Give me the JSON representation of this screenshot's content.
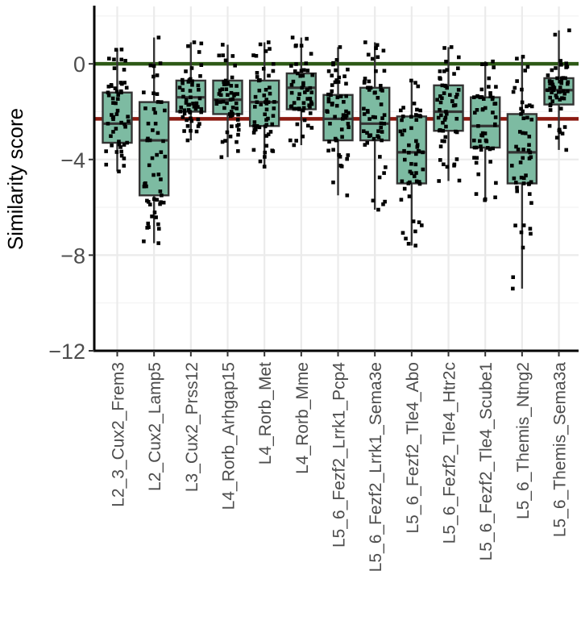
{
  "chart_data": {
    "type": "boxplot",
    "title": "",
    "xlabel": "",
    "ylabel": "Similarity score",
    "ylim": [
      -12,
      2.4
    ],
    "y_ticks": [
      0,
      -4,
      -8,
      -12
    ],
    "y_tick_labels": [
      "0",
      "−4",
      "−8",
      "−12"
    ],
    "grid": true,
    "legend": "none",
    "reference_lines": [
      {
        "name": "zero",
        "value": 0,
        "color": "#2d5a16"
      },
      {
        "name": "threshold",
        "value": -2.3,
        "color": "#8b1a10"
      }
    ],
    "categories": [
      "L2_3_Cux2_Frem3",
      "L2_Cux2_Lamp5",
      "L3_Cux2_Prss12",
      "L4_Rorb_Arhgap15",
      "L4_Rorb_Met",
      "L4_Rorb_Mme",
      "L5_6_Fezf2_Lrrk1_Pcp4",
      "L5_6_Fezf2_Lrrk1_Sema3e",
      "L5_6_Fezf2_Tle4_Abo",
      "L5_6_Fezf2_Tle4_Htr2c",
      "L5_6_Fezf2_Tle4_Scube1",
      "L5_6_Themis_Ntng2",
      "L5_6_Themis_Sema3a"
    ],
    "boxes": [
      {
        "min": -4.5,
        "q1": -3.3,
        "median": -2.5,
        "q3": -1.2,
        "max": 0.6
      },
      {
        "min": -7.5,
        "q1": -5.5,
        "median": -3.2,
        "q3": -1.6,
        "max": 1.1
      },
      {
        "min": -3.2,
        "q1": -2.0,
        "median": -1.4,
        "q3": -0.7,
        "max": 0.9
      },
      {
        "min": -3.9,
        "q1": -2.1,
        "median": -1.5,
        "q3": -0.7,
        "max": 0.8
      },
      {
        "min": -4.3,
        "q1": -2.6,
        "median": -1.6,
        "q3": -0.7,
        "max": 0.9
      },
      {
        "min": -3.4,
        "q1": -1.9,
        "median": -1.0,
        "q3": -0.4,
        "max": 1.1
      },
      {
        "min": -5.5,
        "q1": -3.2,
        "median": -2.3,
        "q3": -1.3,
        "max": 0.7
      },
      {
        "min": -6.1,
        "q1": -3.2,
        "median": -2.5,
        "q3": -1.0,
        "max": 0.9
      },
      {
        "min": -7.6,
        "q1": -5.0,
        "median": -3.7,
        "q3": -2.2,
        "max": -0.7
      },
      {
        "min": -4.9,
        "q1": -2.8,
        "median": -2.0,
        "q3": -0.9,
        "max": 0.7
      },
      {
        "min": -5.7,
        "q1": -3.5,
        "median": -2.6,
        "q3": -1.4,
        "max": 0.1
      },
      {
        "min": -9.4,
        "q1": -5.0,
        "median": -3.7,
        "q3": -2.1,
        "max": 0.3
      },
      {
        "min": -3.6,
        "q1": -1.7,
        "median": -1.1,
        "q3": -0.6,
        "max": 1.4
      }
    ],
    "points_per_group": 55,
    "box_fill": "#7dbba2",
    "box_stroke": "#333333"
  }
}
